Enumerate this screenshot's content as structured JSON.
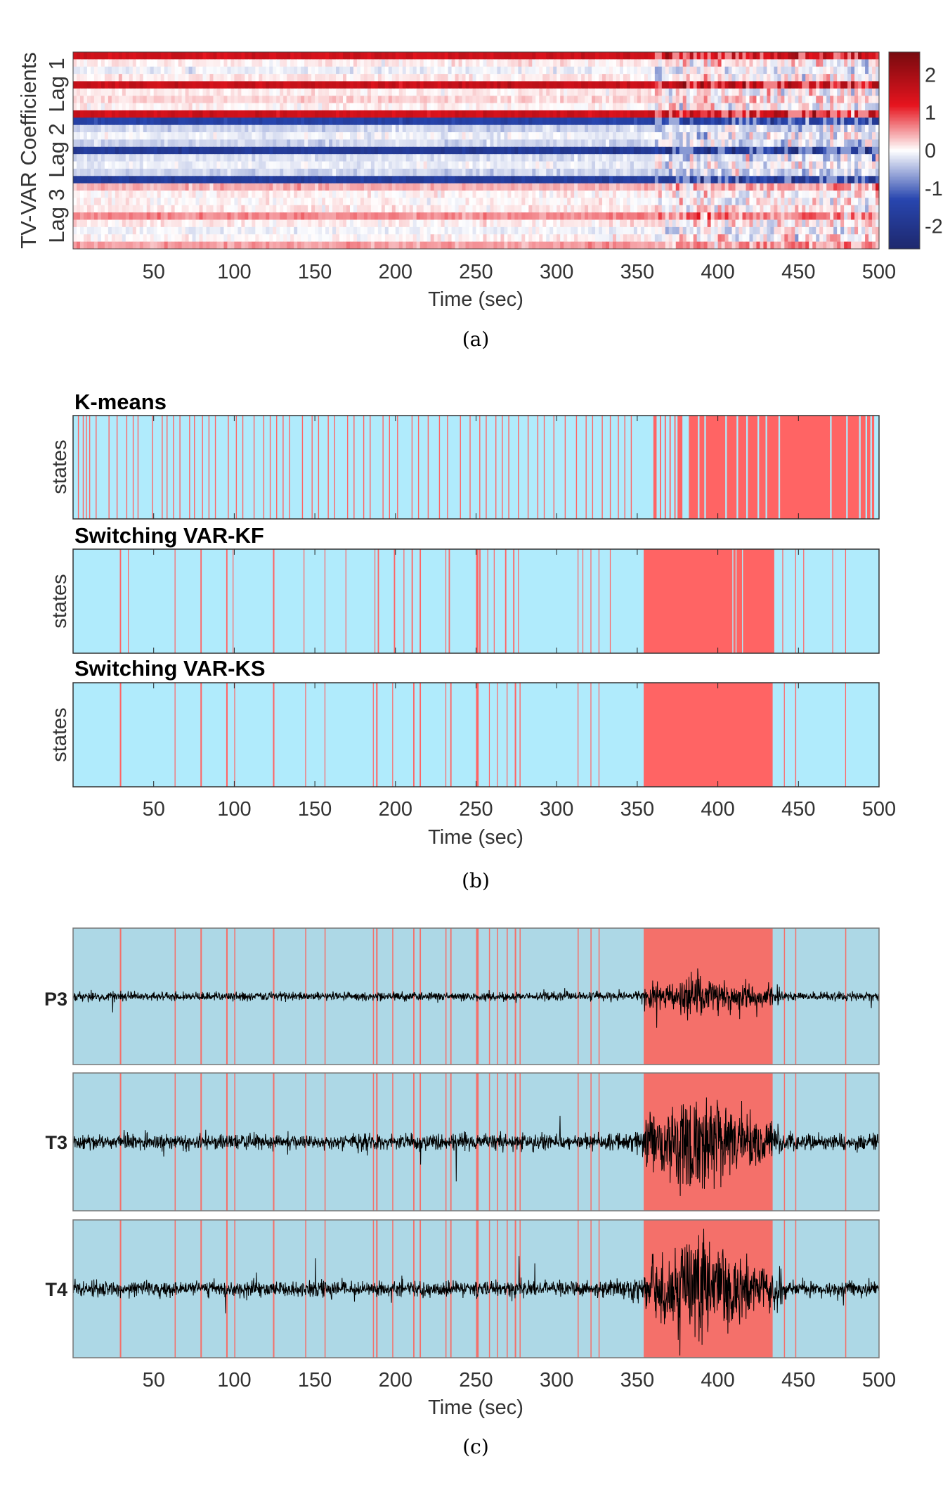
{
  "colors": {
    "state_normal": "#b0ebfc",
    "state_seizure": "#ff6464",
    "eeg_normal": "#add8e6",
    "eeg_seizure": "#f4706a",
    "trace": "#000000"
  },
  "chart_data": [
    {
      "type": "heatmap",
      "caption": "(a)",
      "xlabel": "Time (sec)",
      "ylabel": "TV-VAR Coefficients",
      "row_group_labels": [
        "Lag 1",
        "Lag 2",
        "Lag 3"
      ],
      "xlim": [
        0,
        500
      ],
      "xticks": [
        50,
        100,
        150,
        200,
        250,
        300,
        350,
        400,
        450,
        500
      ],
      "row_mean_values": [
        1.5,
        0.1,
        -0.1,
        0.1,
        1.6,
        0.1,
        0.2,
        0.05,
        1.5,
        -1.5,
        -0.3,
        -0.1,
        -0.3,
        -1.8,
        -0.2,
        -0.1,
        -0.3,
        -1.7,
        0.4,
        0.05,
        0.05,
        0.1,
        0.6,
        0.1,
        -0.1,
        0.05,
        0.5
      ],
      "colorbar": {
        "range": [
          -2.6,
          2.6
        ],
        "ticks": [
          -2,
          -1,
          0,
          1,
          2
        ],
        "colormap": "blue-white-red"
      }
    },
    {
      "type": "state-sequence",
      "caption": "(b)",
      "xlabel": "Time (sec)",
      "xlim": [
        0,
        500
      ],
      "xticks": [
        50,
        100,
        150,
        200,
        250,
        300,
        350,
        400,
        450,
        500
      ],
      "panels": [
        {
          "title": "K-means",
          "ylabel": "states",
          "seizure_intervals": [
            [
              3,
              3.6
            ],
            [
              6,
              6.6
            ],
            [
              8,
              8.6
            ],
            [
              10,
              10.6
            ],
            [
              14,
              14.6
            ],
            [
              22,
              22.6
            ],
            [
              27,
              27.6
            ],
            [
              33,
              33.6
            ],
            [
              37,
              37.6
            ],
            [
              40,
              40.6
            ],
            [
              49,
              49.6
            ],
            [
              55,
              55.6
            ],
            [
              58,
              58.6
            ],
            [
              62,
              62.6
            ],
            [
              66,
              66.6
            ],
            [
              72,
              72.6
            ],
            [
              75,
              75.6
            ],
            [
              80,
              80.6
            ],
            [
              84,
              84.6
            ],
            [
              88,
              88.6
            ],
            [
              96,
              96.6
            ],
            [
              101,
              101.6
            ],
            [
              105,
              105.6
            ],
            [
              112,
              112.6
            ],
            [
              118,
              118.6
            ],
            [
              122,
              122.6
            ],
            [
              126,
              126.6
            ],
            [
              130,
              130.6
            ],
            [
              134,
              134.6
            ],
            [
              142,
              142.6
            ],
            [
              148,
              148.6
            ],
            [
              152,
              152.6
            ],
            [
              158,
              158.6
            ],
            [
              162,
              162.6
            ],
            [
              170,
              170.6
            ],
            [
              174,
              174.6
            ],
            [
              180,
              180.6
            ],
            [
              184,
              184.6
            ],
            [
              192,
              192.6
            ],
            [
              196,
              196.6
            ],
            [
              201,
              201.6
            ],
            [
              210,
              210.6
            ],
            [
              214,
              214.6
            ],
            [
              220,
              220.6
            ],
            [
              227,
              227.6
            ],
            [
              232,
              232.6
            ],
            [
              240,
              240.6
            ],
            [
              246,
              246.6
            ],
            [
              252,
              252.6
            ],
            [
              256,
              256.6
            ],
            [
              262,
              262.6
            ],
            [
              266,
              266.6
            ],
            [
              270,
              270.6
            ],
            [
              276,
              276.6
            ],
            [
              282,
              282.6
            ],
            [
              288,
              288.6
            ],
            [
              292,
              292.6
            ],
            [
              298,
              298.6
            ],
            [
              305,
              305.6
            ],
            [
              312,
              312.6
            ],
            [
              318,
              318.6
            ],
            [
              322,
              322.6
            ],
            [
              328,
              328.6
            ],
            [
              333,
              333.6
            ],
            [
              338,
              338.6
            ],
            [
              342,
              342.6
            ],
            [
              346,
              346.6
            ],
            [
              360,
              362
            ],
            [
              364,
              364.8
            ],
            [
              367,
              367.8
            ],
            [
              370,
              370.8
            ],
            [
              373,
              373.8
            ],
            [
              375,
              378
            ],
            [
              382,
              387.6
            ],
            [
              388.6,
              391.6
            ],
            [
              392.6,
              404.6
            ],
            [
              405.6,
              411.6
            ],
            [
              412.6,
              417.6
            ],
            [
              418.6,
              424.6
            ],
            [
              425.6,
              429.6
            ],
            [
              430.6,
              437.6
            ],
            [
              438.6,
              469.6
            ],
            [
              470.6,
              479.6
            ],
            [
              480.6,
              487.6
            ],
            [
              488.6,
              491.6
            ],
            [
              492.6,
              494.6
            ],
            [
              495.6,
              497
            ]
          ]
        },
        {
          "title": "Switching VAR-KF",
          "ylabel": "states",
          "seizure_intervals": [
            [
              29,
              29.8
            ],
            [
              34,
              34.5
            ],
            [
              63,
              63.5
            ],
            [
              79,
              79.8
            ],
            [
              95,
              95.8
            ],
            [
              99,
              99.5
            ],
            [
              124,
              124.9
            ],
            [
              143,
              143.5
            ],
            [
              156,
              156.5
            ],
            [
              169,
              169.5
            ],
            [
              187,
              187.5
            ],
            [
              189,
              189.8
            ],
            [
              199,
              199.8
            ],
            [
              205,
              205.5
            ],
            [
              210,
              210.8
            ],
            [
              215,
              215.8
            ],
            [
              231,
              231.5
            ],
            [
              233,
              233.8
            ],
            [
              250,
              251.5
            ],
            [
              252,
              252.8
            ],
            [
              257,
              257.5
            ],
            [
              261,
              261.5
            ],
            [
              268,
              268.8
            ],
            [
              273,
              273.8
            ],
            [
              276,
              276.5
            ],
            [
              313,
              313.5
            ],
            [
              316,
              316.5
            ],
            [
              321,
              321.5
            ],
            [
              326,
              326.5
            ],
            [
              333,
              333.5
            ],
            [
              354,
              409
            ],
            [
              409.6,
              411
            ],
            [
              411.6,
              415
            ],
            [
              415.6,
              435
            ],
            [
              440,
              440.5
            ],
            [
              448,
              448.5
            ],
            [
              453,
              453.5
            ],
            [
              471,
              471.5
            ],
            [
              479,
              479.5
            ]
          ]
        },
        {
          "title": "Switching VAR-KS",
          "ylabel": "states",
          "seizure_intervals": [
            [
              29,
              29.9
            ],
            [
              63,
              63.5
            ],
            [
              79,
              79.9
            ],
            [
              95,
              95.9
            ],
            [
              100,
              100.5
            ],
            [
              124,
              124.9
            ],
            [
              144,
              144.5
            ],
            [
              156,
              156.5
            ],
            [
              186,
              186.5
            ],
            [
              188,
              188.9
            ],
            [
              198,
              198.5
            ],
            [
              211,
              211.8
            ],
            [
              215,
              215.8
            ],
            [
              231,
              231.5
            ],
            [
              234,
              234.8
            ],
            [
              250,
              251.6
            ],
            [
              258,
              258.5
            ],
            [
              263,
              263.5
            ],
            [
              269,
              269.5
            ],
            [
              274,
              274.9
            ],
            [
              277,
              277.6
            ],
            [
              313,
              313.5
            ],
            [
              321,
              321.5
            ],
            [
              326,
              326.5
            ],
            [
              354,
              434
            ],
            [
              441,
              441.5
            ],
            [
              448,
              448.6
            ],
            [
              479,
              479.5
            ]
          ]
        }
      ]
    },
    {
      "type": "line",
      "caption": "(c)",
      "xlabel": "Time (sec)",
      "xlim": [
        0,
        500
      ],
      "xticks": [
        50,
        100,
        150,
        200,
        250,
        300,
        350,
        400,
        450,
        500
      ],
      "background_states": "Switching VAR-KS",
      "series": [
        {
          "name": "P3"
        },
        {
          "name": "T3"
        },
        {
          "name": "T4"
        }
      ]
    }
  ]
}
